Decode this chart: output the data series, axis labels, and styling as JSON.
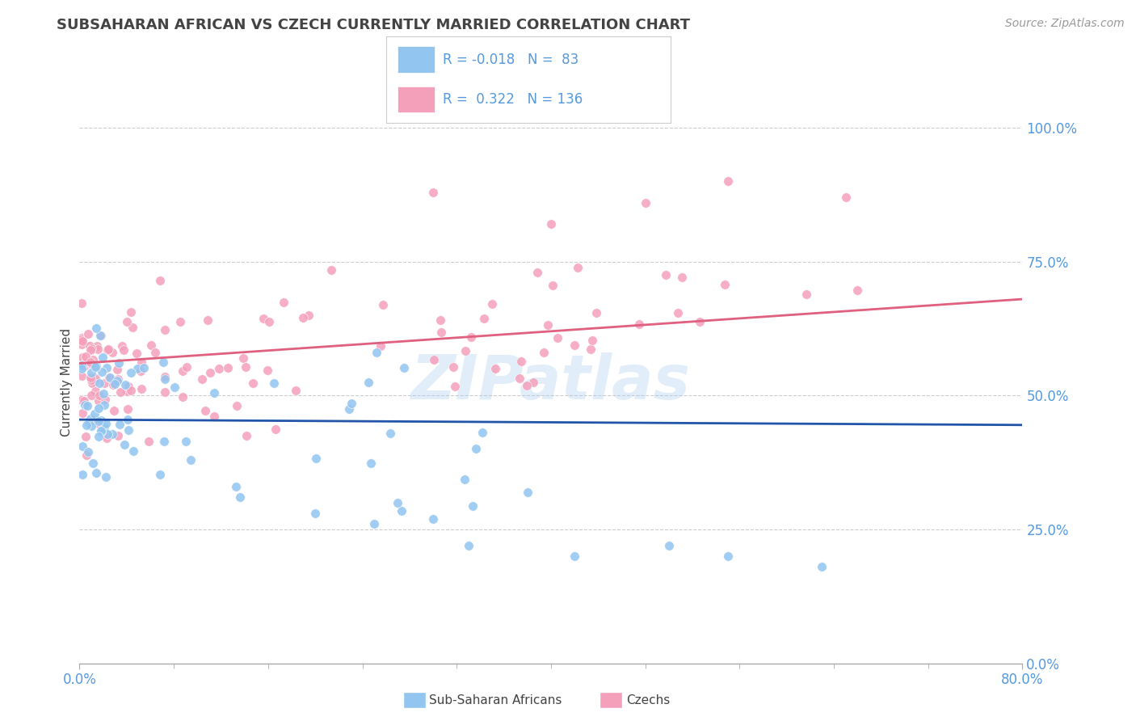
{
  "title": "SUBSAHARAN AFRICAN VS CZECH CURRENTLY MARRIED CORRELATION CHART",
  "source_text": "Source: ZipAtlas.com",
  "ylabel": "Currently Married",
  "xlim": [
    0.0,
    0.8
  ],
  "ylim": [
    0.0,
    1.05
  ],
  "xtick_positions": [
    0.0,
    0.8
  ],
  "xtick_labels": [
    "0.0%",
    "80.0%"
  ],
  "ytick_values": [
    0.0,
    0.25,
    0.5,
    0.75,
    1.0
  ],
  "ytick_labels": [
    "0.0%",
    "25.0%",
    "50.0%",
    "75.0%",
    "100.0%"
  ],
  "legend_r_blue": "-0.018",
  "legend_n_blue": "83",
  "legend_r_pink": "0.322",
  "legend_n_pink": "136",
  "blue_color": "#92C5F0",
  "pink_color": "#F4A0BB",
  "blue_line_color": "#2255AA",
  "pink_line_color": "#E06080",
  "watermark": "ZIPatlas",
  "bg_color": "#FFFFFF",
  "grid_color": "#CCCCCC",
  "axis_label_color": "#5599DD",
  "text_color": "#444444"
}
